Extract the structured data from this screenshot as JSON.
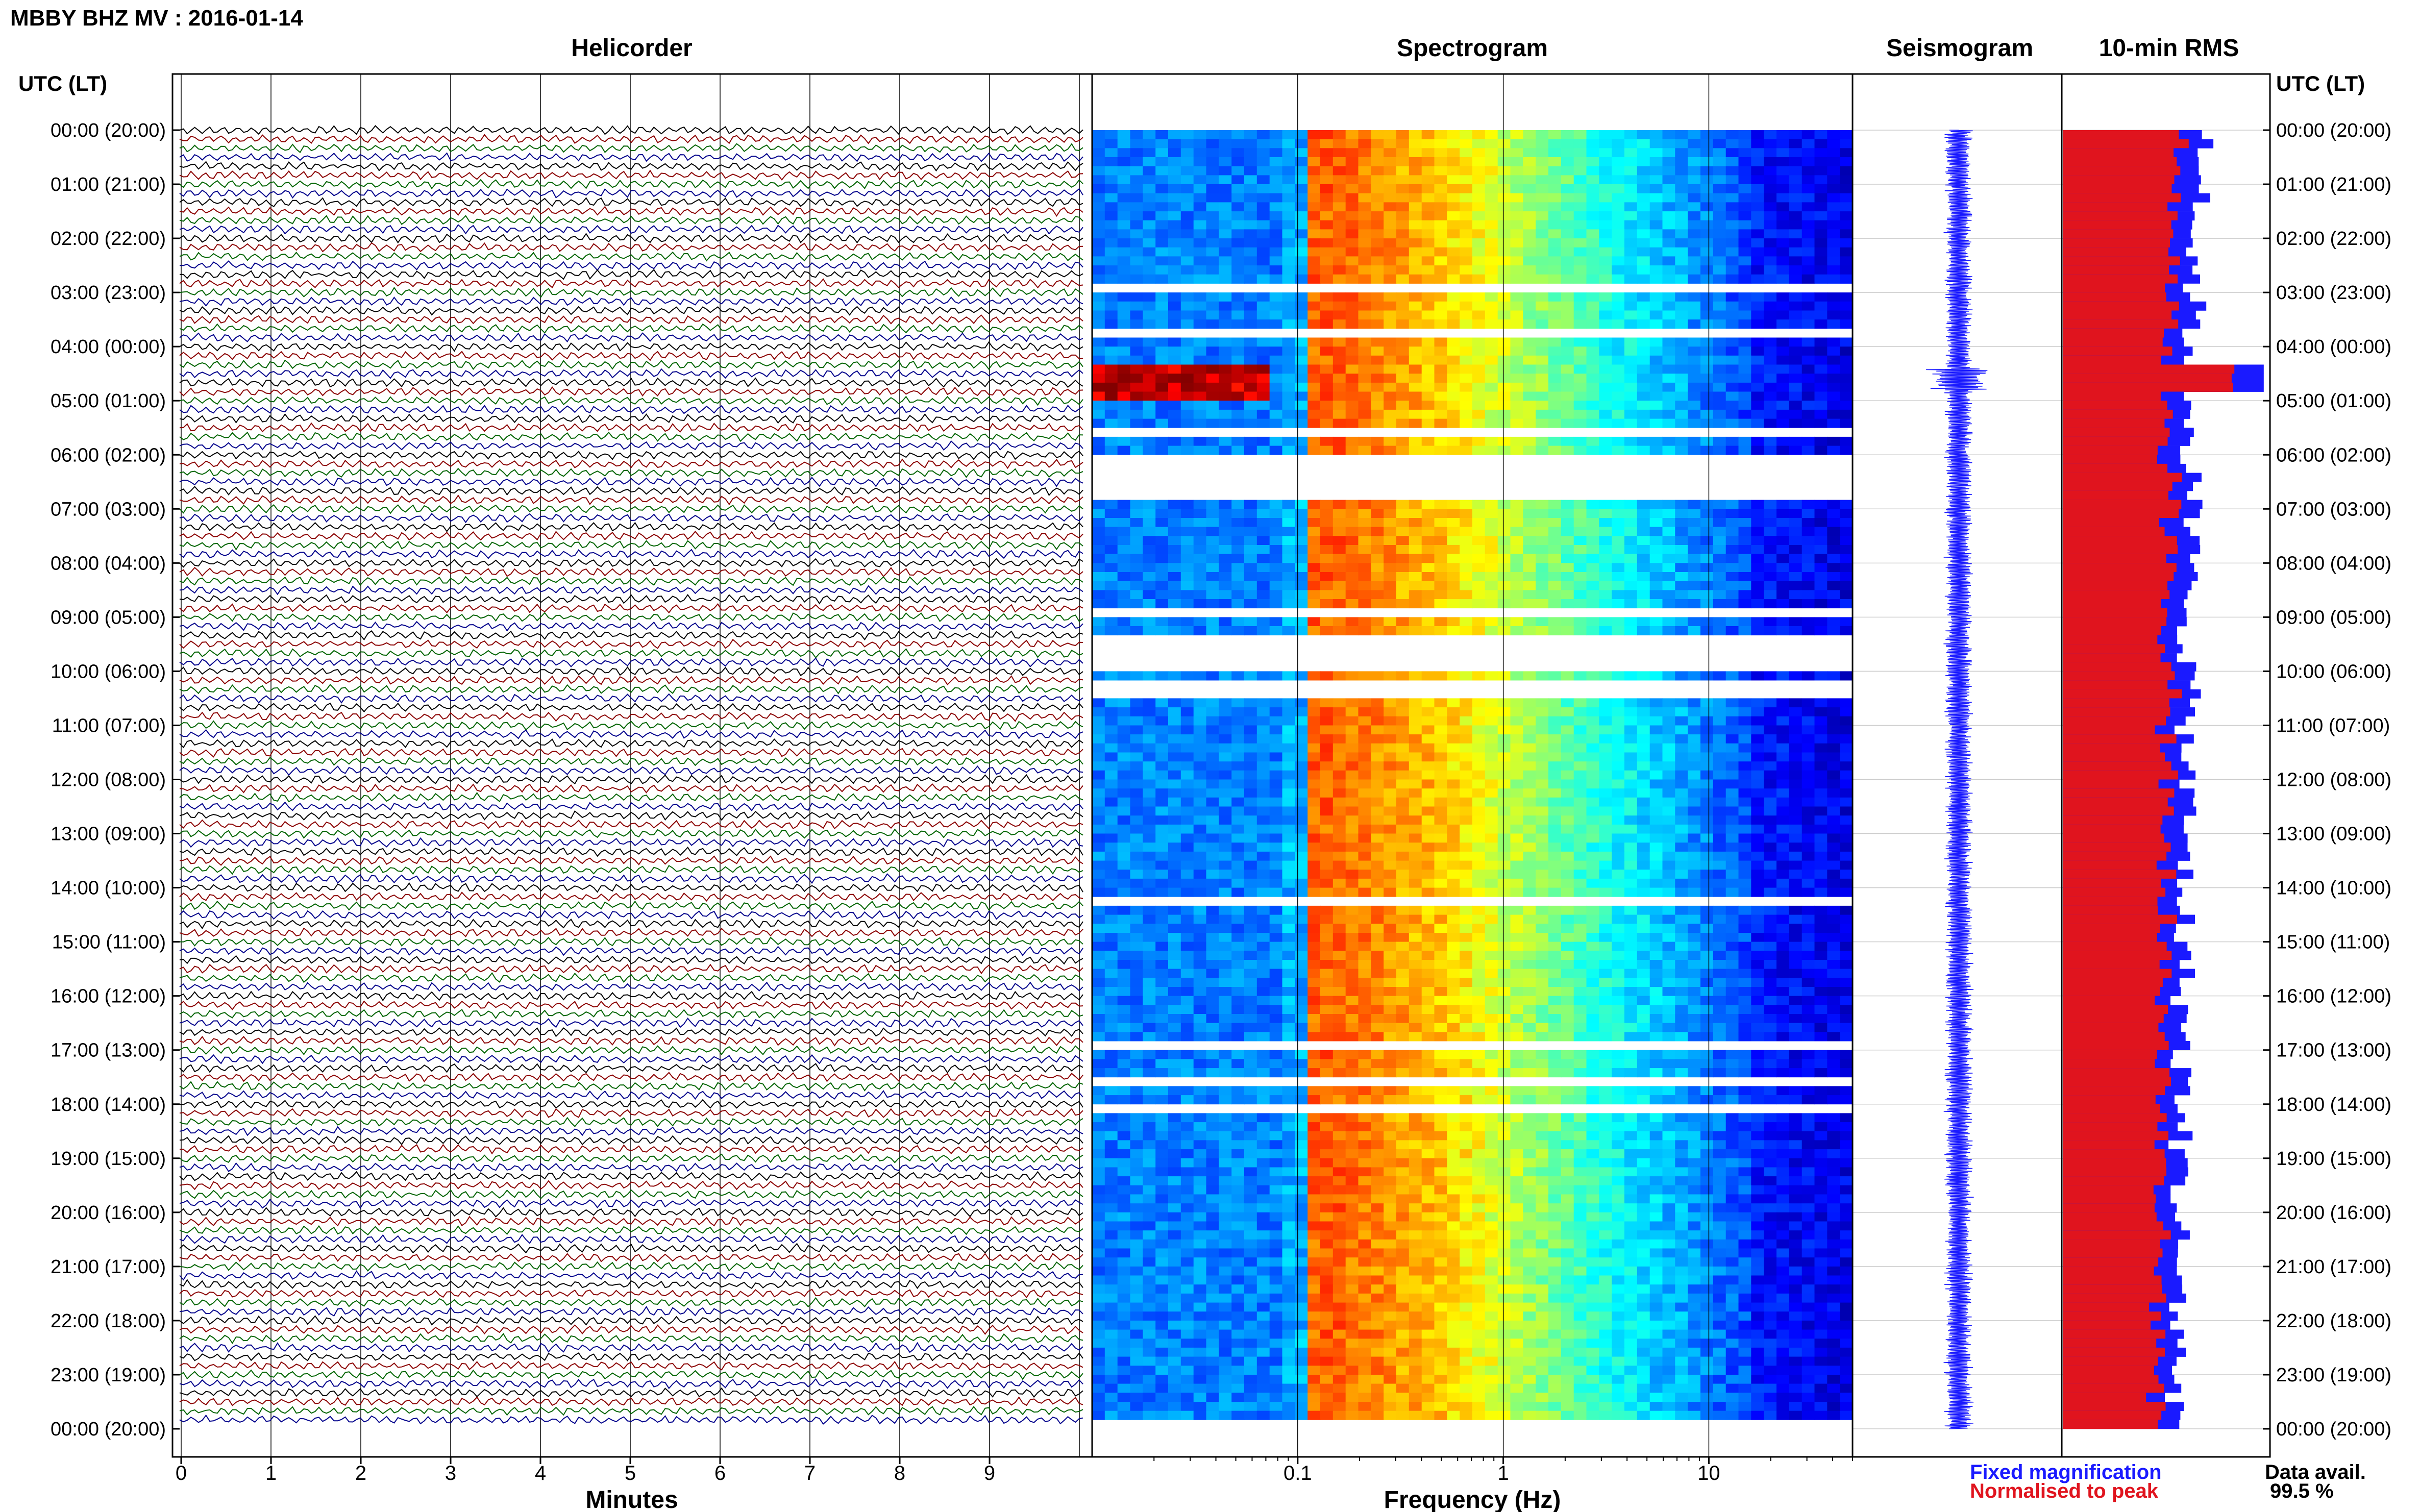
{
  "page": {
    "title": "MBBY BHZ MV : 2016-01-14",
    "utc_label_left": "UTC (LT)",
    "utc_label_right": "UTC (LT)",
    "legend": {
      "fixed_magnification": "Fixed magnification",
      "normalised_to_peak": "Normalised to peak",
      "fixed_color": "#1a1aff",
      "normalised_color": "#e0141e"
    },
    "data_availability": {
      "label": "Data avail.",
      "value": "99.5 %"
    }
  },
  "chart_data": [
    {
      "type": "line",
      "panel": "helicorder",
      "title": "Helicorder",
      "xlabel": "Minutes",
      "x_ticks": [
        "0",
        "1",
        "2",
        "3",
        "4",
        "5",
        "6",
        "7",
        "8",
        "9"
      ],
      "xlim": [
        0,
        10
      ],
      "y_tick_labels": [
        "00:00 (20:00)",
        "01:00 (21:00)",
        "02:00 (22:00)",
        "03:00 (23:00)",
        "04:00 (00:00)",
        "05:00 (01:00)",
        "06:00 (02:00)",
        "07:00 (03:00)",
        "08:00 (04:00)",
        "09:00 (05:00)",
        "10:00 (06:00)",
        "11:00 (07:00)",
        "12:00 (08:00)",
        "13:00 (09:00)",
        "14:00 (10:00)",
        "15:00 (11:00)",
        "16:00 (12:00)",
        "17:00 (13:00)",
        "18:00 (14:00)",
        "19:00 (15:00)",
        "20:00 (16:00)",
        "21:00 (17:00)",
        "22:00 (18:00)",
        "23:00 (19:00)",
        "00:00 (20:00)"
      ],
      "trace_colors": [
        "#000000",
        "#8b0000",
        "#006400",
        "#00008b"
      ],
      "trace_duration_minutes": 10,
      "trace_count": 144
    },
    {
      "type": "heatmap",
      "panel": "spectrogram",
      "title": "Spectrogram",
      "xlabel": "Frequency (Hz)",
      "x_scale": "log",
      "xlim": [
        0.01,
        50
      ],
      "x_tick_labels": [
        "0.1",
        "1",
        "10"
      ],
      "colormap": "jet",
      "data_gap_rows_hours": [
        2.85,
        3.65,
        5.55,
        6.05,
        6.2,
        6.35,
        6.55,
        6.65,
        8.8,
        9.35,
        9.5,
        9.62,
        9.75,
        10.2,
        10.35,
        14.2,
        16.75,
        17.52,
        18.05,
        23.85
      ]
    },
    {
      "type": "line",
      "panel": "seismogram",
      "title": "Seismogram",
      "color": "#1a1aff"
    },
    {
      "type": "bar",
      "panel": "rms",
      "title": "10-min RMS",
      "orientation": "horizontal",
      "bin_minutes": 10,
      "series": [
        {
          "name": "Fixed magnification",
          "color": "#1a1aff"
        },
        {
          "name": "Normalised to peak",
          "color": "#e0141e"
        }
      ],
      "peak_hour": 4.5
    }
  ]
}
